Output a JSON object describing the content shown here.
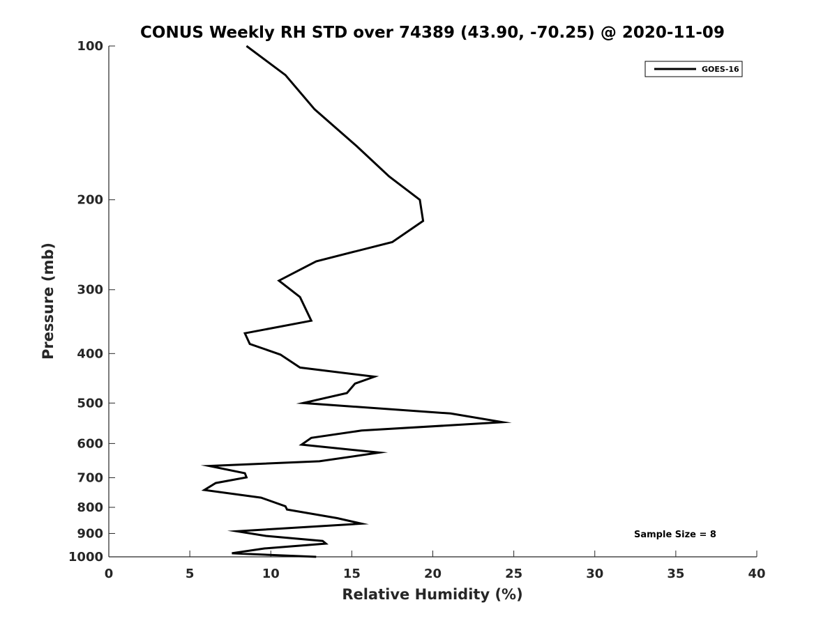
{
  "chart_data": {
    "type": "line",
    "title": "CONUS Weekly RH STD over 74389 (43.90, -70.25) @ 2020-11-09",
    "xlabel": "Relative Humidity (%)",
    "ylabel": "Pressure (mb)",
    "xlim": [
      0,
      40
    ],
    "ylim": [
      100,
      1000
    ],
    "yscale": "log",
    "y_reversed": true,
    "xticks": [
      0,
      5,
      10,
      15,
      20,
      25,
      30,
      35,
      40
    ],
    "yticks": [
      100,
      200,
      300,
      400,
      500,
      600,
      700,
      800,
      900,
      1000
    ],
    "grid": false,
    "legend_position": "top-right",
    "series": [
      {
        "name": "GOES-16",
        "color": "#000000",
        "x": [
          8.5,
          10.9,
          12.7,
          15.3,
          17.3,
          19.2,
          19.4,
          17.5,
          12.8,
          10.5,
          11.8,
          12.5,
          8.4,
          8.7,
          10.6,
          11.8,
          16.4,
          15.2,
          14.7,
          12.0,
          21.1,
          24.3,
          15.6,
          12.5,
          11.9,
          16.7,
          13.0,
          6.2,
          8.4,
          8.5,
          6.6,
          5.9,
          9.4,
          10.9,
          11.0,
          14.1,
          15.6,
          7.9,
          9.7,
          13.2,
          13.4,
          9.6,
          7.6,
          12.8
        ],
        "y": [
          100,
          114,
          133,
          157,
          180,
          200,
          220,
          242,
          264,
          288,
          310,
          345,
          365,
          383,
          402,
          426,
          444,
          458,
          478,
          500,
          524,
          545,
          566,
          585,
          603,
          625,
          650,
          664,
          686,
          699,
          717,
          740,
          766,
          796,
          808,
          840,
          861,
          891,
          910,
          931,
          942,
          963,
          984,
          1000
        ]
      }
    ],
    "annotations": [
      "Sample Size = 8"
    ]
  }
}
